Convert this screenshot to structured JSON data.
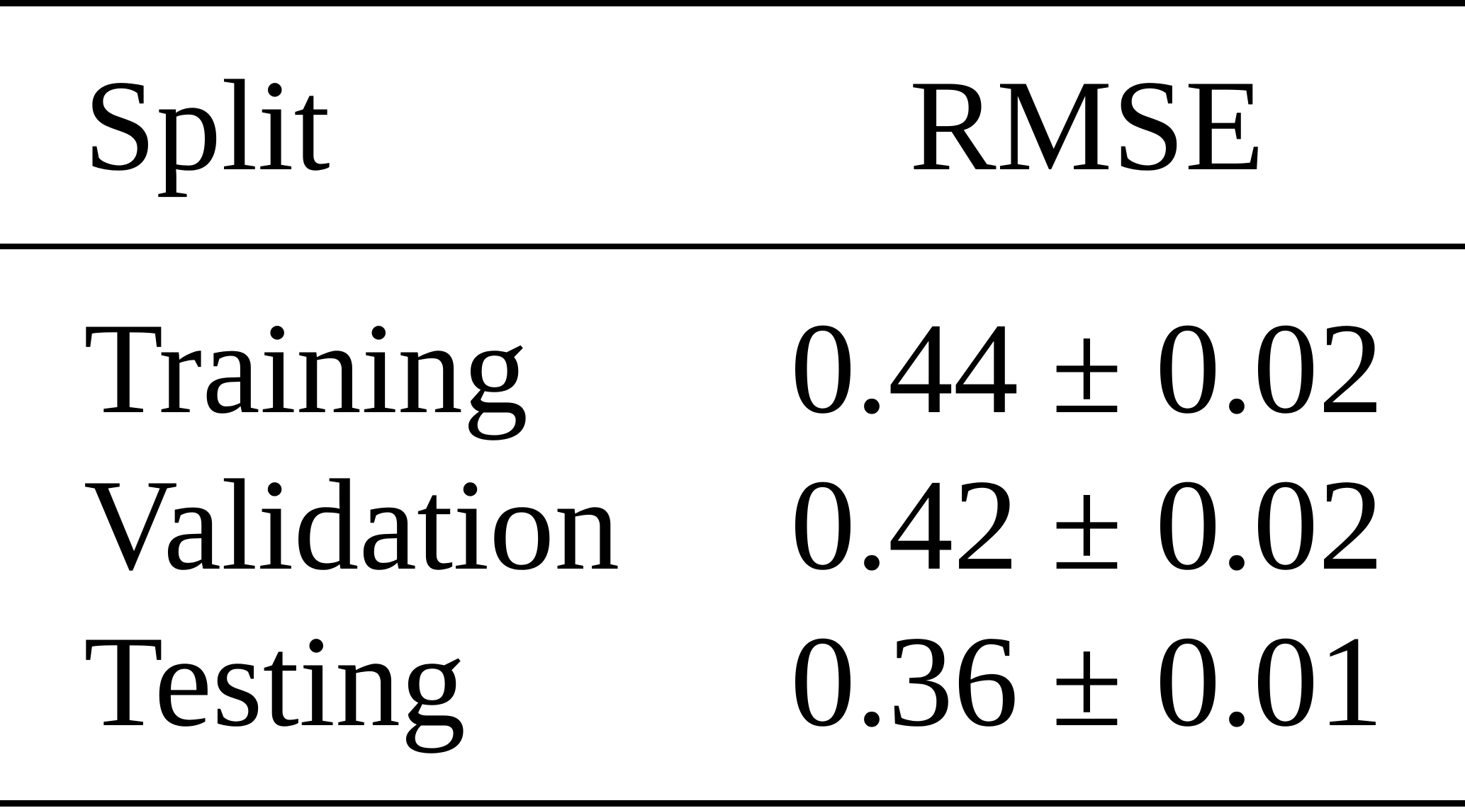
{
  "colors": {
    "background": "#ffffff",
    "text": "#000000",
    "rule": "#000000"
  },
  "table": {
    "header": {
      "split": "Split",
      "rmse": "RMSE"
    },
    "rows": [
      {
        "split": "Training",
        "rmse": "0.44 ± 0.02"
      },
      {
        "split": "Validation",
        "rmse": "0.42 ± 0.02"
      },
      {
        "split": "Testing",
        "rmse": "0.36 ± 0.01"
      }
    ]
  },
  "chart_data": {
    "type": "table",
    "columns": [
      "Split",
      "RMSE"
    ],
    "rows": [
      [
        "Training",
        "0.44 ± 0.02"
      ],
      [
        "Validation",
        "0.42 ± 0.02"
      ],
      [
        "Testing",
        "0.36 ± 0.01"
      ]
    ],
    "numeric": [
      {
        "split": "Training",
        "rmse_mean": 0.44,
        "rmse_std": 0.02
      },
      {
        "split": "Validation",
        "rmse_mean": 0.42,
        "rmse_std": 0.02
      },
      {
        "split": "Testing",
        "rmse_mean": 0.36,
        "rmse_std": 0.01
      }
    ]
  }
}
